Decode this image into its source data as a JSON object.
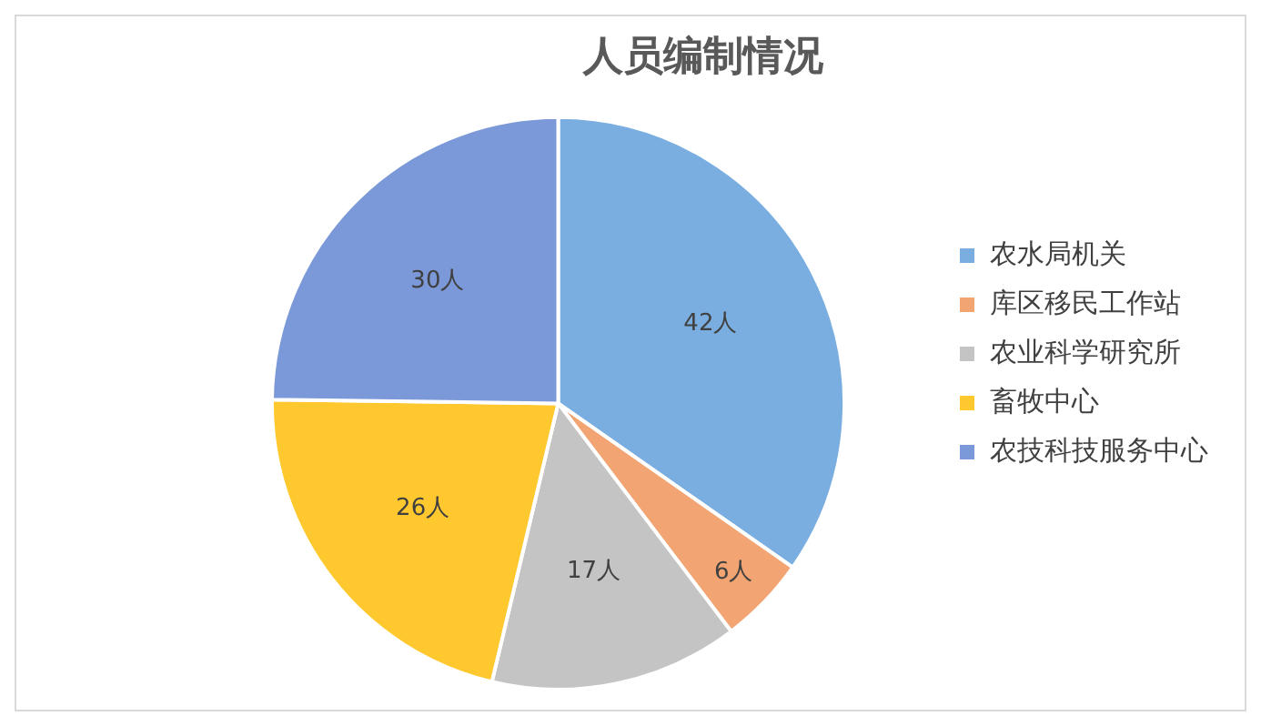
{
  "chart_data": {
    "type": "pie",
    "title": "人员编制情况",
    "categories": [
      "农水局机关",
      "库区移民工作站",
      "农业科学研究所",
      "畜牧中心",
      "农技科技服务中心"
    ],
    "values": [
      42,
      6,
      17,
      26,
      30
    ],
    "colors": [
      "#7aaee0",
      "#f2a572",
      "#c4c4c4",
      "#ffc82e",
      "#7b98d8"
    ],
    "value_labels": [
      "42人",
      "6人",
      "17人",
      "26人",
      "30人"
    ],
    "legend": "right"
  }
}
